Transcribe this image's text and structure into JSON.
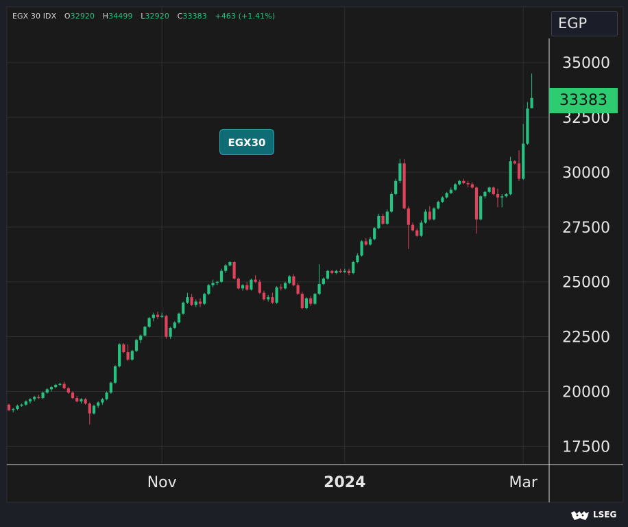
{
  "header": {
    "symbol": "EGX 30 IDX",
    "open_label": "O",
    "open": "32920",
    "high_label": "H",
    "high": "34499",
    "low_label": "L",
    "low": "32920",
    "close_label": "C",
    "close": "33383",
    "change": "+463 (+1.41%)"
  },
  "currency": "EGP",
  "watermark": "EGX30",
  "last_price": "33383",
  "brand": "LSEG",
  "colors": {
    "background": "#1c1f26",
    "plot_background": "#1a1a1a",
    "up": "#26c281",
    "down": "#e0435c",
    "grid": "#2e2e2e",
    "watermark": "#0f6c74"
  },
  "chart_data": {
    "type": "candlestick",
    "ylim": [
      16700,
      36100
    ],
    "yticks": [
      17500,
      20000,
      22500,
      25000,
      27500,
      30000,
      32500,
      35000
    ],
    "x_tick_labels": [
      {
        "label": "Nov",
        "index": 36
      },
      {
        "label": "2024",
        "index": 79
      },
      {
        "label": "Mar",
        "index": 121
      }
    ],
    "grid": true,
    "last_price": 33383,
    "ohlc": [
      [
        19400,
        19450,
        19100,
        19150
      ],
      [
        19150,
        19250,
        19050,
        19200
      ],
      [
        19200,
        19400,
        19150,
        19350
      ],
      [
        19350,
        19450,
        19300,
        19400
      ],
      [
        19400,
        19600,
        19350,
        19550
      ],
      [
        19550,
        19700,
        19450,
        19650
      ],
      [
        19650,
        19800,
        19550,
        19750
      ],
      [
        19750,
        19850,
        19650,
        19700
      ],
      [
        19700,
        20000,
        19650,
        19950
      ],
      [
        19950,
        20150,
        19900,
        20100
      ],
      [
        20100,
        20250,
        20000,
        20200
      ],
      [
        20200,
        20350,
        20150,
        20300
      ],
      [
        20300,
        20400,
        20250,
        20350
      ],
      [
        20350,
        20450,
        20100,
        20150
      ],
      [
        20150,
        20200,
        19900,
        19950
      ],
      [
        19950,
        20000,
        19650,
        19700
      ],
      [
        19700,
        19800,
        19500,
        19550
      ],
      [
        19550,
        19700,
        19450,
        19650
      ],
      [
        19650,
        19700,
        19400,
        19450
      ],
      [
        19450,
        19500,
        18500,
        19000
      ],
      [
        19000,
        19400,
        18950,
        19350
      ],
      [
        19350,
        19550,
        19250,
        19500
      ],
      [
        19500,
        19700,
        19400,
        19650
      ],
      [
        19650,
        20000,
        19600,
        19950
      ],
      [
        19950,
        20450,
        19900,
        20400
      ],
      [
        20400,
        21200,
        20350,
        21150
      ],
      [
        21150,
        22200,
        21100,
        22150
      ],
      [
        22150,
        22200,
        21750,
        21800
      ],
      [
        21800,
        22150,
        21400,
        21450
      ],
      [
        21450,
        21900,
        21400,
        21850
      ],
      [
        21850,
        22400,
        21800,
        22350
      ],
      [
        22350,
        22600,
        22200,
        22550
      ],
      [
        22550,
        23000,
        22500,
        22950
      ],
      [
        22950,
        23400,
        22900,
        23350
      ],
      [
        23350,
        23600,
        23200,
        23500
      ],
      [
        23500,
        23650,
        23300,
        23400
      ],
      [
        23400,
        23600,
        23350,
        23450
      ],
      [
        23450,
        23500,
        22400,
        22500
      ],
      [
        22500,
        22950,
        22400,
        22900
      ],
      [
        22900,
        23200,
        22850,
        23150
      ],
      [
        23150,
        23600,
        23100,
        23550
      ],
      [
        23550,
        24100,
        23500,
        24050
      ],
      [
        24050,
        24500,
        24000,
        24300
      ],
      [
        24300,
        24450,
        23900,
        23950
      ],
      [
        23950,
        24200,
        23850,
        24100
      ],
      [
        24100,
        24250,
        23850,
        24000
      ],
      [
        24000,
        24500,
        23950,
        24450
      ],
      [
        24450,
        24900,
        24400,
        24850
      ],
      [
        24850,
        25100,
        24750,
        24950
      ],
      [
        24950,
        25050,
        24850,
        25000
      ],
      [
        25000,
        25600,
        24950,
        25500
      ],
      [
        25500,
        25800,
        25400,
        25750
      ],
      [
        25750,
        25950,
        25700,
        25900
      ],
      [
        25900,
        25950,
        25100,
        25150
      ],
      [
        25150,
        25200,
        24650,
        24700
      ],
      [
        24700,
        24900,
        24600,
        24850
      ],
      [
        24850,
        25000,
        24600,
        24650
      ],
      [
        24650,
        25150,
        24600,
        25100
      ],
      [
        25100,
        25300,
        24950,
        25000
      ],
      [
        25000,
        25100,
        24450,
        24500
      ],
      [
        24500,
        24600,
        24150,
        24200
      ],
      [
        24200,
        24400,
        24100,
        24300
      ],
      [
        24300,
        24500,
        24000,
        24050
      ],
      [
        24050,
        24800,
        24000,
        24750
      ],
      [
        24750,
        24900,
        24600,
        24700
      ],
      [
        24700,
        25000,
        24650,
        24950
      ],
      [
        24950,
        25300,
        24900,
        25250
      ],
      [
        25250,
        25350,
        24800,
        24850
      ],
      [
        24850,
        24950,
        24400,
        24450
      ],
      [
        24450,
        24550,
        23750,
        23800
      ],
      [
        23800,
        24300,
        23750,
        24250
      ],
      [
        24250,
        24350,
        23900,
        24000
      ],
      [
        24000,
        24500,
        23950,
        24450
      ],
      [
        24450,
        25800,
        24400,
        24900
      ],
      [
        24900,
        25200,
        24850,
        25150
      ],
      [
        25150,
        25550,
        25100,
        25500
      ],
      [
        25500,
        25550,
        25350,
        25400
      ],
      [
        25400,
        25550,
        25350,
        25500
      ],
      [
        25500,
        25600,
        25400,
        25450
      ],
      [
        25450,
        25600,
        25400,
        25500
      ],
      [
        25500,
        25600,
        25300,
        25400
      ],
      [
        25400,
        25950,
        25350,
        25900
      ],
      [
        25900,
        26300,
        25850,
        26200
      ],
      [
        26200,
        26900,
        26150,
        26850
      ],
      [
        26850,
        27000,
        26650,
        26700
      ],
      [
        26700,
        27050,
        26650,
        26950
      ],
      [
        26950,
        27500,
        26900,
        27450
      ],
      [
        27450,
        28100,
        27400,
        28000
      ],
      [
        28000,
        28100,
        27600,
        27650
      ],
      [
        27650,
        28300,
        27600,
        28200
      ],
      [
        28200,
        29100,
        28150,
        29000
      ],
      [
        29000,
        29700,
        28950,
        29600
      ],
      [
        29600,
        30600,
        29500,
        30400
      ],
      [
        30400,
        30600,
        28300,
        28350
      ],
      [
        28350,
        28450,
        26500,
        27600
      ],
      [
        27600,
        27700,
        27300,
        27350
      ],
      [
        27350,
        27450,
        27050,
        27100
      ],
      [
        27100,
        27800,
        27050,
        27700
      ],
      [
        27700,
        28300,
        27650,
        28200
      ],
      [
        28200,
        28450,
        27800,
        27850
      ],
      [
        27850,
        28400,
        27800,
        28350
      ],
      [
        28350,
        28700,
        28300,
        28650
      ],
      [
        28650,
        28900,
        28600,
        28850
      ],
      [
        28850,
        29100,
        28800,
        29050
      ],
      [
        29050,
        29300,
        29000,
        29200
      ],
      [
        29200,
        29500,
        29150,
        29450
      ],
      [
        29450,
        29650,
        29400,
        29600
      ],
      [
        29600,
        29700,
        29450,
        29500
      ],
      [
        29500,
        29600,
        29300,
        29450
      ],
      [
        29450,
        29550,
        29250,
        29300
      ],
      [
        29300,
        29350,
        27200,
        27850
      ],
      [
        27850,
        28950,
        27800,
        28900
      ],
      [
        28900,
        29150,
        28800,
        29100
      ],
      [
        29100,
        29350,
        29050,
        29300
      ],
      [
        29300,
        29350,
        28950,
        29000
      ],
      [
        29000,
        29250,
        28400,
        28850
      ],
      [
        28850,
        29000,
        28400,
        28900
      ],
      [
        28900,
        29050,
        28850,
        29000
      ],
      [
        29000,
        30700,
        28950,
        30500
      ],
      [
        30500,
        30550,
        30350,
        30400
      ],
      [
        30400,
        31000,
        29600,
        29700
      ],
      [
        29700,
        32200,
        29650,
        31300
      ],
      [
        31300,
        33200,
        31250,
        32900
      ],
      [
        32920,
        34499,
        32920,
        33383
      ]
    ]
  }
}
